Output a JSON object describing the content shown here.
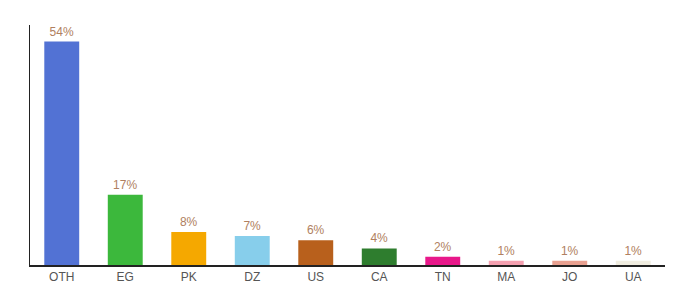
{
  "chart_data": {
    "type": "bar",
    "categories": [
      "OTH",
      "EG",
      "PK",
      "DZ",
      "US",
      "CA",
      "TN",
      "MA",
      "JO",
      "UA"
    ],
    "values": [
      54,
      17,
      8,
      7,
      6,
      4,
      2,
      1,
      1,
      1
    ],
    "value_labels": [
      "54%",
      "17%",
      "8%",
      "7%",
      "6%",
      "4%",
      "2%",
      "1%",
      "1%",
      "1%"
    ],
    "colors": [
      "#5272d4",
      "#3cb83c",
      "#f5a800",
      "#87ceeb",
      "#b8601c",
      "#2e7d2e",
      "#e8188a",
      "#f4a0b0",
      "#e8a090",
      "#f0ede0"
    ],
    "ylim": [
      0,
      58
    ],
    "grid": false,
    "data_labels": true,
    "tick_labels": "x"
  }
}
